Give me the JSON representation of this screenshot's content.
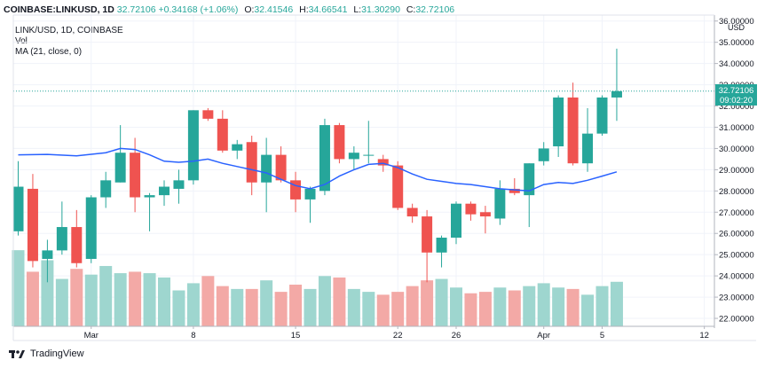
{
  "header": {
    "symbol": "COINBASE:LINKUSD, 1D",
    "last": "32.72106",
    "change": "+0.34168 (+1.06%)",
    "o_label": "O:",
    "o_value": "32.41546",
    "h_label": "H:",
    "h_value": "34.66541",
    "l_label": "L:",
    "l_value": "31.30290",
    "c_label": "C:",
    "c_value": "32.72106"
  },
  "legend": {
    "title": "LINK/USD, 1D, COINBASE",
    "vol": "Vol",
    "ma": "MA (21, close, 0)"
  },
  "price_axis": {
    "unit": "USD",
    "tag_price": "32.72106",
    "tag_time": "09:02:20"
  },
  "footer": {
    "brand": "TradingView"
  },
  "colors": {
    "up": "#26a69a",
    "down": "#ef5350",
    "ma": "#2962ff",
    "up_vol": "#9ed6cf",
    "down_vol": "#f3a9a6"
  },
  "chart_data": {
    "type": "candlestick",
    "symbol": "LINK/USD",
    "interval": "1D",
    "exchange": "COINBASE",
    "ylim": [
      21.5,
      36.2
    ],
    "y_ticks": [
      22,
      23,
      24,
      25,
      26,
      27,
      28,
      29,
      30,
      31,
      32,
      33,
      34,
      35,
      36
    ],
    "y_tick_labels": [
      "22.00000",
      "23.00000",
      "24.00000",
      "25.00000",
      "26.00000",
      "27.00000",
      "28.00000",
      "29.00000",
      "30.00000",
      "31.00000",
      "32.00000",
      "33.00000",
      "34.00000",
      "35.00000",
      "36.00000"
    ],
    "x_ticks": [
      {
        "label": "Mar",
        "index": 5
      },
      {
        "label": "8",
        "index": 12
      },
      {
        "label": "15",
        "index": 19
      },
      {
        "label": "22",
        "index": 26
      },
      {
        "label": "26",
        "index": 30
      },
      {
        "label": "Apr",
        "index": 36
      },
      {
        "label": "5",
        "index": 40
      },
      {
        "label": "12",
        "index": 47
      }
    ],
    "candles": [
      {
        "o": 26.1,
        "h": 29.4,
        "l": 25.9,
        "c": 28.2
      },
      {
        "o": 28.1,
        "h": 28.8,
        "l": 24.4,
        "c": 24.7
      },
      {
        "o": 24.8,
        "h": 25.7,
        "l": 23.7,
        "c": 25.2
      },
      {
        "o": 25.2,
        "h": 27.5,
        "l": 25.0,
        "c": 26.3
      },
      {
        "o": 26.3,
        "h": 27.1,
        "l": 24.4,
        "c": 24.6
      },
      {
        "o": 24.8,
        "h": 27.8,
        "l": 24.6,
        "c": 27.7
      },
      {
        "o": 27.7,
        "h": 28.9,
        "l": 27.2,
        "c": 28.5
      },
      {
        "o": 28.4,
        "h": 31.1,
        "l": 28.4,
        "c": 29.8
      },
      {
        "o": 29.8,
        "h": 30.5,
        "l": 27.0,
        "c": 27.7
      },
      {
        "o": 27.7,
        "h": 27.9,
        "l": 26.1,
        "c": 27.8
      },
      {
        "o": 27.8,
        "h": 28.5,
        "l": 27.3,
        "c": 28.2
      },
      {
        "o": 28.1,
        "h": 29.0,
        "l": 27.4,
        "c": 28.5
      },
      {
        "o": 28.5,
        "h": 31.8,
        "l": 28.3,
        "c": 31.8
      },
      {
        "o": 31.8,
        "h": 31.9,
        "l": 31.3,
        "c": 31.4
      },
      {
        "o": 31.4,
        "h": 31.8,
        "l": 29.8,
        "c": 29.9
      },
      {
        "o": 29.9,
        "h": 30.4,
        "l": 29.5,
        "c": 30.2
      },
      {
        "o": 30.3,
        "h": 30.6,
        "l": 27.8,
        "c": 28.4
      },
      {
        "o": 28.4,
        "h": 30.5,
        "l": 27.0,
        "c": 29.7
      },
      {
        "o": 29.7,
        "h": 30.1,
        "l": 28.4,
        "c": 28.5
      },
      {
        "o": 28.5,
        "h": 28.9,
        "l": 27.0,
        "c": 27.6
      },
      {
        "o": 27.6,
        "h": 28.2,
        "l": 26.5,
        "c": 28.1
      },
      {
        "o": 28.0,
        "h": 31.4,
        "l": 27.8,
        "c": 31.1
      },
      {
        "o": 31.1,
        "h": 31.2,
        "l": 29.3,
        "c": 29.5
      },
      {
        "o": 29.5,
        "h": 30.1,
        "l": 29.0,
        "c": 29.8
      },
      {
        "o": 29.7,
        "h": 31.3,
        "l": 29.3,
        "c": 29.7
      },
      {
        "o": 29.5,
        "h": 29.7,
        "l": 28.9,
        "c": 29.2
      },
      {
        "o": 29.2,
        "h": 29.4,
        "l": 27.1,
        "c": 27.2
      },
      {
        "o": 27.2,
        "h": 27.4,
        "l": 26.5,
        "c": 26.8
      },
      {
        "o": 26.8,
        "h": 27.1,
        "l": 23.7,
        "c": 25.1
      },
      {
        "o": 25.1,
        "h": 25.9,
        "l": 24.4,
        "c": 25.8
      },
      {
        "o": 25.8,
        "h": 27.5,
        "l": 25.5,
        "c": 27.4
      },
      {
        "o": 27.4,
        "h": 27.5,
        "l": 26.6,
        "c": 26.9
      },
      {
        "o": 27.0,
        "h": 27.3,
        "l": 26.0,
        "c": 26.8
      },
      {
        "o": 26.7,
        "h": 28.5,
        "l": 26.4,
        "c": 28.1
      },
      {
        "o": 28.1,
        "h": 28.6,
        "l": 27.8,
        "c": 27.9
      },
      {
        "o": 27.8,
        "h": 29.3,
        "l": 26.3,
        "c": 29.3
      },
      {
        "o": 29.4,
        "h": 30.3,
        "l": 29.2,
        "c": 30.0
      },
      {
        "o": 30.1,
        "h": 32.5,
        "l": 29.6,
        "c": 32.4
      },
      {
        "o": 32.4,
        "h": 33.1,
        "l": 29.2,
        "c": 29.3
      },
      {
        "o": 29.3,
        "h": 31.9,
        "l": 28.9,
        "c": 30.7
      },
      {
        "o": 30.7,
        "h": 32.5,
        "l": 30.6,
        "c": 32.4
      },
      {
        "o": 32.4,
        "h": 34.7,
        "l": 31.3,
        "c": 32.7
      }
    ],
    "volumes": [
      5.3,
      3.8,
      4.6,
      3.3,
      4.0,
      3.6,
      4.2,
      3.7,
      3.8,
      3.7,
      3.4,
      2.5,
      3.0,
      3.5,
      2.8,
      2.6,
      2.6,
      3.2,
      2.4,
      2.9,
      2.6,
      3.5,
      3.4,
      2.6,
      2.4,
      2.2,
      2.4,
      2.8,
      3.2,
      3.3,
      2.7,
      2.3,
      2.4,
      2.7,
      2.5,
      2.8,
      3.0,
      2.7,
      2.6,
      2.2,
      2.8,
      3.1
    ],
    "ma": {
      "name": "MA (21, close, 0)",
      "points": [
        {
          "i": 0,
          "v": 29.7
        },
        {
          "i": 2,
          "v": 29.72
        },
        {
          "i": 4,
          "v": 29.65
        },
        {
          "i": 6,
          "v": 29.8
        },
        {
          "i": 7,
          "v": 30.0
        },
        {
          "i": 8,
          "v": 29.95
        },
        {
          "i": 9,
          "v": 29.7
        },
        {
          "i": 10,
          "v": 29.4
        },
        {
          "i": 11,
          "v": 29.35
        },
        {
          "i": 12,
          "v": 29.4
        },
        {
          "i": 13,
          "v": 29.5
        },
        {
          "i": 14,
          "v": 29.3
        },
        {
          "i": 15,
          "v": 29.15
        },
        {
          "i": 16,
          "v": 29.0
        },
        {
          "i": 17,
          "v": 28.85
        },
        {
          "i": 18,
          "v": 28.55
        },
        {
          "i": 19,
          "v": 28.25
        },
        {
          "i": 20,
          "v": 28.1
        },
        {
          "i": 21,
          "v": 28.3
        },
        {
          "i": 22,
          "v": 28.7
        },
        {
          "i": 23,
          "v": 29.0
        },
        {
          "i": 24,
          "v": 29.25
        },
        {
          "i": 25,
          "v": 29.3
        },
        {
          "i": 26,
          "v": 29.1
        },
        {
          "i": 27,
          "v": 28.8
        },
        {
          "i": 28,
          "v": 28.55
        },
        {
          "i": 29,
          "v": 28.45
        },
        {
          "i": 30,
          "v": 28.35
        },
        {
          "i": 31,
          "v": 28.3
        },
        {
          "i": 32,
          "v": 28.2
        },
        {
          "i": 33,
          "v": 28.1
        },
        {
          "i": 34,
          "v": 28.05
        },
        {
          "i": 35,
          "v": 28.0
        },
        {
          "i": 36,
          "v": 28.3
        },
        {
          "i": 37,
          "v": 28.4
        },
        {
          "i": 38,
          "v": 28.35
        },
        {
          "i": 39,
          "v": 28.5
        },
        {
          "i": 40,
          "v": 28.7
        },
        {
          "i": 41,
          "v": 28.9
        }
      ]
    }
  }
}
